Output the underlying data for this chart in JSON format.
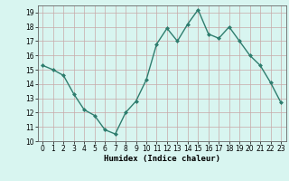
{
  "x": [
    0,
    1,
    2,
    3,
    4,
    5,
    6,
    7,
    8,
    9,
    10,
    11,
    12,
    13,
    14,
    15,
    16,
    17,
    18,
    19,
    20,
    21,
    22,
    23
  ],
  "y": [
    15.3,
    15.0,
    14.6,
    13.3,
    12.2,
    11.8,
    10.8,
    10.5,
    12.0,
    12.8,
    14.3,
    16.8,
    17.9,
    17.0,
    18.2,
    19.2,
    17.5,
    17.2,
    18.0,
    17.0,
    16.0,
    15.3,
    14.1,
    12.7
  ],
  "line_color": "#2e7d6e",
  "marker": "D",
  "marker_size": 2,
  "linewidth": 1.0,
  "bg_color": "#d8f5f0",
  "grid_major_color": "#c8a8a8",
  "grid_minor_color": "#c8a8a8",
  "xlabel": "Humidex (Indice chaleur)",
  "xlim": [
    -0.5,
    23.5
  ],
  "ylim": [
    10,
    19.5
  ],
  "yticks": [
    10,
    11,
    12,
    13,
    14,
    15,
    16,
    17,
    18,
    19
  ],
  "xticks": [
    0,
    1,
    2,
    3,
    4,
    5,
    6,
    7,
    8,
    9,
    10,
    11,
    12,
    13,
    14,
    15,
    16,
    17,
    18,
    19,
    20,
    21,
    22,
    23
  ],
  "tick_fontsize": 5.5,
  "label_fontsize": 6.5
}
